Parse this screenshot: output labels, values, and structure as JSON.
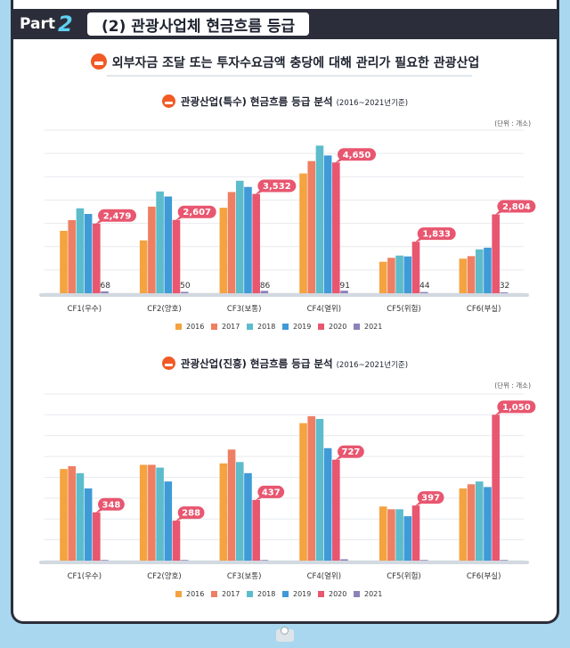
{
  "header": {
    "part_label": "Part",
    "part_number": "2",
    "title": "(2) 관광사업체 현금흐름 등급"
  },
  "subheading": "외부자금 조달 또는 투자수요금액 충당에 대해 관리가 필요한 관광산업",
  "colors": {
    "2016": "#f4a340",
    "2017": "#ee7f62",
    "2018": "#5dbccb",
    "2019": "#3f9ad8",
    "2020": "#e8566f",
    "2021": "#8c82b8"
  },
  "charts": [
    {
      "title": "관광산업(특수) 현금흐름 등급 분석",
      "period": "(2016~2021년기준)",
      "unit": "(단위 : 개소)"
    },
    {
      "title": "관광산업(진흥) 현금흐름 등급 분석",
      "period": "(2016~2021년기준)",
      "unit": "(단위 : 개소)"
    }
  ],
  "chart_data": [
    {
      "type": "bar",
      "title": "관광산업(특수) 현금흐름 등급 분석",
      "categories": [
        "CF1(우수)",
        "CF2(양호)",
        "CF3(보통)",
        "CF4(열위)",
        "CF5(위험)",
        "CF6(부실)"
      ],
      "series": [
        {
          "name": "2016",
          "values": [
            2220,
            1880,
            3040,
            4260,
            1120,
            1230
          ]
        },
        {
          "name": "2017",
          "values": [
            2600,
            3080,
            3600,
            4700,
            1260,
            1320
          ]
        },
        {
          "name": "2018",
          "values": [
            3020,
            3620,
            4000,
            5250,
            1340,
            1560
          ]
        },
        {
          "name": "2019",
          "values": [
            2820,
            3440,
            3780,
            4900,
            1310,
            1620
          ]
        },
        {
          "name": "2020",
          "values": [
            2479,
            2607,
            3532,
            4650,
            1833,
            2804
          ]
        },
        {
          "name": "2021",
          "values": [
            68,
            50,
            86,
            91,
            44,
            32
          ]
        }
      ],
      "data_labels": [
        "2,479",
        "2,607",
        "3,532",
        "4,650",
        "1,833",
        "2,804",
        "68",
        "50",
        "86",
        "91",
        "44",
        "32"
      ],
      "ylim": [
        0,
        5800
      ],
      "grid": true,
      "legend": "bottom"
    },
    {
      "type": "bar",
      "title": "관광산업(진흥) 현금흐름 등급 분석",
      "categories": [
        "CF1(우수)",
        "CF2(양호)",
        "CF3(보통)",
        "CF4(열위)",
        "CF5(위험)",
        "CF6(부실)"
      ],
      "series": [
        {
          "name": "2016",
          "values": [
            660,
            690,
            700,
            990,
            390,
            520
          ]
        },
        {
          "name": "2017",
          "values": [
            680,
            690,
            800,
            1040,
            370,
            550
          ]
        },
        {
          "name": "2018",
          "values": [
            630,
            670,
            710,
            1020,
            370,
            570
          ]
        },
        {
          "name": "2019",
          "values": [
            520,
            570,
            630,
            810,
            320,
            530
          ]
        },
        {
          "name": "2020",
          "values": [
            348,
            288,
            437,
            727,
            397,
            1050
          ]
        },
        {
          "name": "2021",
          "values": [
            5,
            5,
            5,
            10,
            5,
            5
          ]
        }
      ],
      "data_labels": [
        "348",
        "288",
        "437",
        "727",
        "397",
        "1,050"
      ],
      "ylim": [
        0,
        1200
      ],
      "grid": true,
      "legend": "bottom"
    }
  ]
}
